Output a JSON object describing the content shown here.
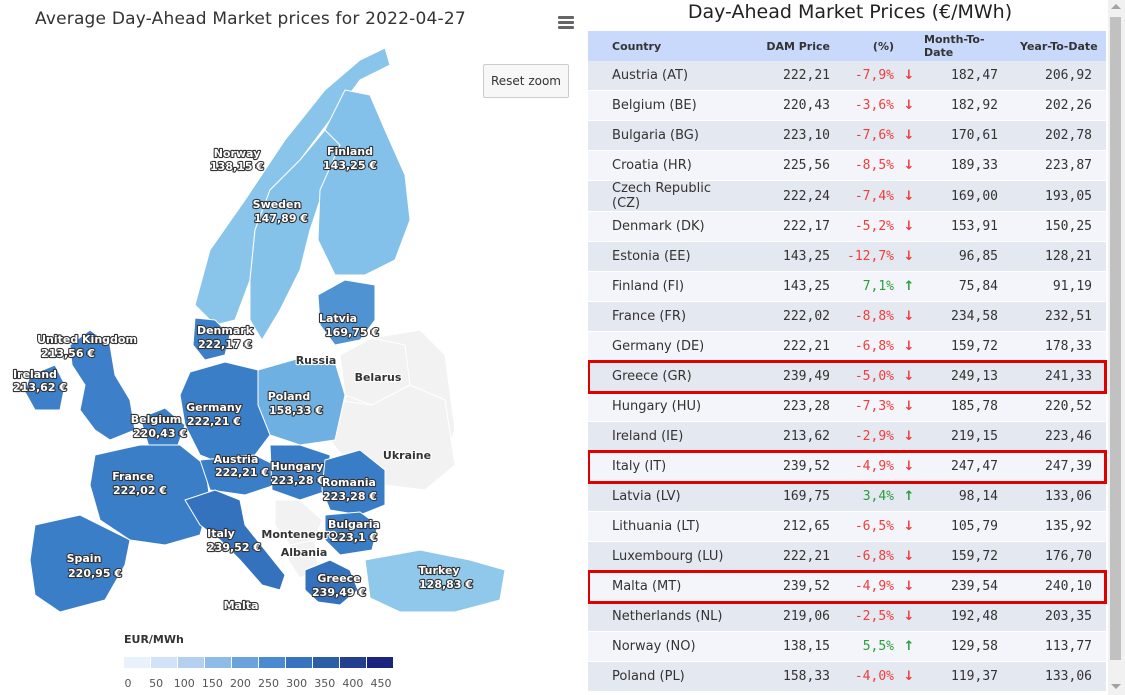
{
  "map": {
    "title": "Average Day-Ahead Market prices for 2022-04-27",
    "reset_zoom": "Reset zoom",
    "menu_icon": "hamburger-menu-icon",
    "legend": {
      "title": "EUR/MWh",
      "ticks": [
        "0",
        "50",
        "100",
        "150",
        "200",
        "250",
        "300",
        "350",
        "400",
        "450"
      ],
      "colors": [
        "#e9f2fb",
        "#d1e3f6",
        "#b3d1ef",
        "#8fbce6",
        "#6aa3dc",
        "#4a8ad1",
        "#3873c2",
        "#2c5ea8",
        "#233f8d",
        "#1a237e"
      ]
    },
    "countries": [
      {
        "name": "Norway",
        "price": "138,15 €",
        "color": "#89c4ea"
      },
      {
        "name": "Finland",
        "price": "143,25 €",
        "color": "#84c1ea"
      },
      {
        "name": "Sweden",
        "price": "147,89 €",
        "color": "#85c2ea"
      },
      {
        "name": "Denmark",
        "price": "222,17 €",
        "color": "#3b7fc8"
      },
      {
        "name": "Latvia",
        "price": "169,75 €",
        "color": "#4f93d3"
      },
      {
        "name": "United Kingdom",
        "price": "213,56 €",
        "color": "#3d80c9"
      },
      {
        "name": "Ireland",
        "price": "213,62 €",
        "color": "#3d80c9"
      },
      {
        "name": "Russia",
        "price": "",
        "color": "#f2f2f2"
      },
      {
        "name": "Belarus",
        "price": "",
        "color": "#f2f2f2"
      },
      {
        "name": "Poland",
        "price": "158,33 €",
        "color": "#6fb0e2"
      },
      {
        "name": "Belgium",
        "price": "220,43 €",
        "color": "#3b7ec8"
      },
      {
        "name": "Germany",
        "price": "222,21 €",
        "color": "#3b7ec8"
      },
      {
        "name": "Ukraine",
        "price": "",
        "color": "#f2f2f2"
      },
      {
        "name": "Austria",
        "price": "222,21 €",
        "color": "#3b7ec8"
      },
      {
        "name": "Hungary",
        "price": "223,28 €",
        "color": "#3a7dc7"
      },
      {
        "name": "Romania",
        "price": "223,28 €",
        "color": "#3a7dc7"
      },
      {
        "name": "France",
        "price": "222,02 €",
        "color": "#3b7ec8"
      },
      {
        "name": "Bulgaria",
        "price": "223,1 €",
        "color": "#3a7dc7"
      },
      {
        "name": "Italy",
        "price": "239,52 €",
        "color": "#3472be"
      },
      {
        "name": "Montenegro",
        "price": "",
        "color": "#f2f2f2"
      },
      {
        "name": "Albania",
        "price": "",
        "color": "#f2f2f2"
      },
      {
        "name": "Spain",
        "price": "220,95 €",
        "color": "#3b7ec8"
      },
      {
        "name": "Turkey",
        "price": "128,83 €",
        "color": "#90c8ec"
      },
      {
        "name": "Greece",
        "price": "239,49 €",
        "color": "#3472be"
      },
      {
        "name": "Malta",
        "price": "",
        "color": "#3472be"
      }
    ]
  },
  "table": {
    "title": "Day-Ahead Market Prices (€/MWh)",
    "headers": {
      "country": "Country",
      "dam": "DAM Price",
      "pct": "(%)",
      "mtd": "Month-To-Date",
      "ytd": "Year-To-Date"
    },
    "rows": [
      {
        "country": "Austria (AT)",
        "dam": "222,21",
        "pct": "-7,9%",
        "dir": "down",
        "mtd": "182,47",
        "ytd": "206,92",
        "highlight": false
      },
      {
        "country": "Belgium (BE)",
        "dam": "220,43",
        "pct": "-3,6%",
        "dir": "down",
        "mtd": "182,92",
        "ytd": "202,26",
        "highlight": false
      },
      {
        "country": "Bulgaria (BG)",
        "dam": "223,10",
        "pct": "-7,6%",
        "dir": "down",
        "mtd": "170,61",
        "ytd": "202,78",
        "highlight": false
      },
      {
        "country": "Croatia (HR)",
        "dam": "225,56",
        "pct": "-8,5%",
        "dir": "down",
        "mtd": "189,33",
        "ytd": "223,87",
        "highlight": false
      },
      {
        "country": "Czech Republic (CZ)",
        "dam": "222,24",
        "pct": "-7,4%",
        "dir": "down",
        "mtd": "169,00",
        "ytd": "193,05",
        "highlight": false
      },
      {
        "country": "Denmark (DK)",
        "dam": "222,17",
        "pct": "-5,2%",
        "dir": "down",
        "mtd": "153,91",
        "ytd": "150,25",
        "highlight": false
      },
      {
        "country": "Estonia (EE)",
        "dam": "143,25",
        "pct": "-12,7%",
        "dir": "down",
        "mtd": "96,85",
        "ytd": "128,21",
        "highlight": false
      },
      {
        "country": "Finland (FI)",
        "dam": "143,25",
        "pct": "7,1%",
        "dir": "up",
        "mtd": "75,84",
        "ytd": "91,19",
        "highlight": false
      },
      {
        "country": "France (FR)",
        "dam": "222,02",
        "pct": "-8,8%",
        "dir": "down",
        "mtd": "234,58",
        "ytd": "232,51",
        "highlight": false
      },
      {
        "country": "Germany (DE)",
        "dam": "222,21",
        "pct": "-6,8%",
        "dir": "down",
        "mtd": "159,72",
        "ytd": "178,33",
        "highlight": false
      },
      {
        "country": "Greece (GR)",
        "dam": "239,49",
        "pct": "-5,0%",
        "dir": "down",
        "mtd": "249,13",
        "ytd": "241,33",
        "highlight": true
      },
      {
        "country": "Hungary (HU)",
        "dam": "223,28",
        "pct": "-7,3%",
        "dir": "down",
        "mtd": "185,78",
        "ytd": "220,52",
        "highlight": false
      },
      {
        "country": "Ireland (IE)",
        "dam": "213,62",
        "pct": "-2,9%",
        "dir": "down",
        "mtd": "219,15",
        "ytd": "223,46",
        "highlight": false
      },
      {
        "country": "Italy (IT)",
        "dam": "239,52",
        "pct": "-4,9%",
        "dir": "down",
        "mtd": "247,47",
        "ytd": "247,39",
        "highlight": true
      },
      {
        "country": "Latvia (LV)",
        "dam": "169,75",
        "pct": "3,4%",
        "dir": "up",
        "mtd": "98,14",
        "ytd": "133,06",
        "highlight": false
      },
      {
        "country": "Lithuania (LT)",
        "dam": "212,65",
        "pct": "-6,5%",
        "dir": "down",
        "mtd": "105,79",
        "ytd": "135,92",
        "highlight": false
      },
      {
        "country": "Luxembourg (LU)",
        "dam": "222,21",
        "pct": "-6,8%",
        "dir": "down",
        "mtd": "159,72",
        "ytd": "176,70",
        "highlight": false
      },
      {
        "country": "Malta (MT)",
        "dam": "239,52",
        "pct": "-4,9%",
        "dir": "down",
        "mtd": "239,54",
        "ytd": "240,10",
        "highlight": true
      },
      {
        "country": "Netherlands (NL)",
        "dam": "219,06",
        "pct": "-2,5%",
        "dir": "down",
        "mtd": "192,48",
        "ytd": "203,35",
        "highlight": false
      },
      {
        "country": "Norway (NO)",
        "dam": "138,15",
        "pct": "5,5%",
        "dir": "up",
        "mtd": "129,58",
        "ytd": "113,77",
        "highlight": false
      },
      {
        "country": "Poland (PL)",
        "dam": "158,33",
        "pct": "-4,0%",
        "dir": "down",
        "mtd": "119,37",
        "ytd": "133,06",
        "highlight": false
      }
    ],
    "highlight_color": "#e00000",
    "up_color": "#2a9d3a",
    "down_color": "#f03c3c"
  }
}
